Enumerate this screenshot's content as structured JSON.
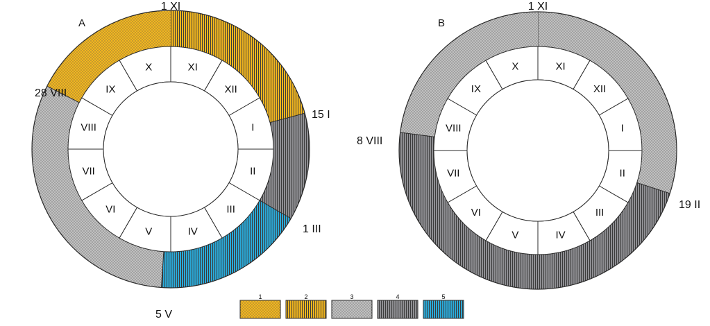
{
  "colors": {
    "yellow": "#f2b61e",
    "gray": "#c0c0c0",
    "dark_gray": "#8e8e92",
    "blue": "#2aa9d8",
    "outline": "#2a2a2a",
    "dots": "#555555",
    "stripes": "#3a3a3a"
  },
  "months": [
    "XI",
    "XII",
    "I",
    "II",
    "III",
    "IV",
    "V",
    "VI",
    "VII",
    "VIII",
    "IX",
    "X"
  ],
  "panels": [
    {
      "id": "A",
      "label": "A",
      "dates": [
        {
          "text": "1 XI",
          "month": 0
        },
        {
          "text": "15 I",
          "month": 2.5
        },
        {
          "text": "1 III",
          "month": 4
        },
        {
          "text": "5 V",
          "month": 6.13
        },
        {
          "text": "28 VIII",
          "month": 9.9
        }
      ],
      "segments": [
        {
          "type": 2,
          "from": 0,
          "to": 2.5
        },
        {
          "type": 4,
          "from": 2.5,
          "to": 4
        },
        {
          "type": 5,
          "from": 4,
          "to": 6.13
        },
        {
          "type": 3,
          "from": 6.13,
          "to": 9.9
        },
        {
          "type": 1,
          "from": 9.9,
          "to": 12
        }
      ]
    },
    {
      "id": "B",
      "label": "B",
      "dates": [
        {
          "text": "1 XI",
          "month": 0
        },
        {
          "text": "19 II",
          "month": 3.6
        },
        {
          "text": "8 VIII",
          "month": 9.25
        }
      ],
      "segments": [
        {
          "type": 3,
          "from": 0,
          "to": 3.6
        },
        {
          "type": 4,
          "from": 3.6,
          "to": 9.25
        },
        {
          "type": 3,
          "from": 9.25,
          "to": 12
        }
      ]
    }
  ],
  "legend": [
    {
      "type": 1,
      "label": "1"
    },
    {
      "type": 2,
      "label": "2"
    },
    {
      "type": 3,
      "label": "3"
    },
    {
      "type": 4,
      "label": "4"
    },
    {
      "type": 5,
      "label": "5"
    }
  ]
}
